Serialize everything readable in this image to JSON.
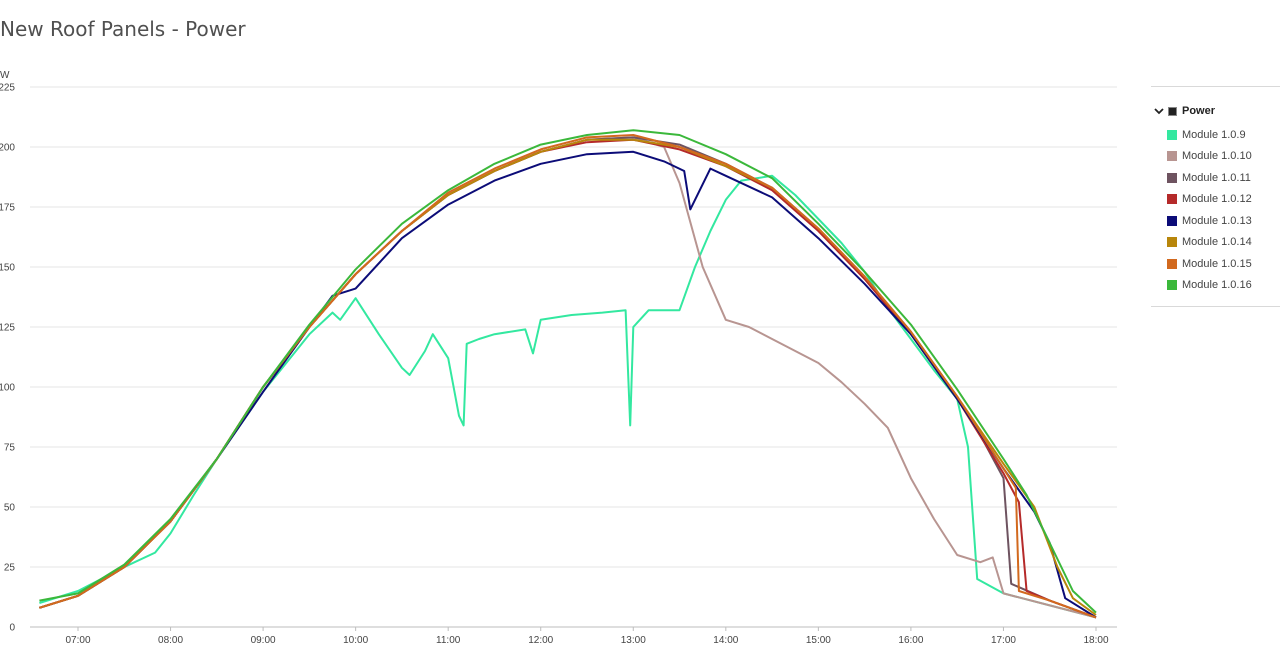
{
  "page": {
    "title": "New Roof Panels - Power"
  },
  "legend": {
    "group_label": "Power",
    "collapse_icon": "chevron-down-icon"
  },
  "chart_data": {
    "type": "line",
    "title": "New Roof Panels - Power",
    "ylabel": "W",
    "xlabel": "",
    "ylim": [
      0,
      225
    ],
    "xlim": [
      "06:35",
      "18:05"
    ],
    "y_ticks": [
      "0",
      "25",
      "50",
      "75",
      "100",
      "125",
      "150",
      "175",
      "200",
      "225"
    ],
    "x_ticks": [
      "07:00",
      "08:00",
      "09:00",
      "10:00",
      "11:00",
      "12:00",
      "13:00",
      "14:00",
      "15:00",
      "16:00",
      "17:00",
      "18:00"
    ],
    "grid": true,
    "legend_position": "right",
    "series": [
      {
        "name": "Module 1.0.9",
        "color": "#33e8a0",
        "points": [
          [
            "06:35",
            10
          ],
          [
            "07:00",
            15
          ],
          [
            "07:30",
            25
          ],
          [
            "07:50",
            31
          ],
          [
            "08:00",
            39
          ],
          [
            "08:15",
            55
          ],
          [
            "08:30",
            70
          ],
          [
            "09:00",
            98
          ],
          [
            "09:30",
            122
          ],
          [
            "09:45",
            131
          ],
          [
            "09:50",
            128
          ],
          [
            "10:00",
            137
          ],
          [
            "10:15",
            122
          ],
          [
            "10:30",
            108
          ],
          [
            "10:35",
            105
          ],
          [
            "10:45",
            115
          ],
          [
            "10:50",
            122
          ],
          [
            "11:00",
            112
          ],
          [
            "11:07",
            88
          ],
          [
            "11:10",
            84
          ],
          [
            "11:12",
            118
          ],
          [
            "11:20",
            120
          ],
          [
            "11:30",
            122
          ],
          [
            "11:50",
            124
          ],
          [
            "11:55",
            114
          ],
          [
            "12:00",
            128
          ],
          [
            "12:20",
            130
          ],
          [
            "12:40",
            131
          ],
          [
            "12:55",
            132
          ],
          [
            "12:58",
            84
          ],
          [
            "13:00",
            125
          ],
          [
            "13:10",
            132
          ],
          [
            "13:30",
            132
          ],
          [
            "13:40",
            150
          ],
          [
            "13:50",
            165
          ],
          [
            "14:00",
            178
          ],
          [
            "14:10",
            186
          ],
          [
            "14:30",
            188
          ],
          [
            "14:45",
            180
          ],
          [
            "15:00",
            170
          ],
          [
            "15:15",
            160
          ],
          [
            "15:30",
            148
          ],
          [
            "15:45",
            133
          ],
          [
            "16:00",
            120
          ],
          [
            "16:15",
            107
          ],
          [
            "16:30",
            95
          ],
          [
            "16:37",
            75
          ],
          [
            "16:43",
            20
          ],
          [
            "17:00",
            14
          ],
          [
            "17:30",
            9
          ],
          [
            "18:00",
            4
          ]
        ]
      },
      {
        "name": "Module 1.0.10",
        "color": "#b89591",
        "points": [
          [
            "06:35",
            8
          ],
          [
            "07:00",
            13
          ],
          [
            "07:30",
            25
          ],
          [
            "08:00",
            44
          ],
          [
            "08:30",
            70
          ],
          [
            "09:00",
            100
          ],
          [
            "09:30",
            125
          ],
          [
            "10:00",
            147
          ],
          [
            "10:30",
            165
          ],
          [
            "11:00",
            180
          ],
          [
            "11:30",
            190
          ],
          [
            "12:00",
            198
          ],
          [
            "12:30",
            203
          ],
          [
            "13:00",
            204
          ],
          [
            "13:20",
            200
          ],
          [
            "13:30",
            185
          ],
          [
            "13:45",
            150
          ],
          [
            "14:00",
            128
          ],
          [
            "14:15",
            125
          ],
          [
            "14:30",
            120
          ],
          [
            "15:00",
            110
          ],
          [
            "15:15",
            102
          ],
          [
            "15:30",
            93
          ],
          [
            "15:45",
            83
          ],
          [
            "16:00",
            62
          ],
          [
            "16:15",
            45
          ],
          [
            "16:30",
            30
          ],
          [
            "16:45",
            27
          ],
          [
            "16:53",
            29
          ],
          [
            "17:00",
            14
          ],
          [
            "17:30",
            9
          ],
          [
            "18:00",
            4
          ]
        ]
      },
      {
        "name": "Module 1.0.11",
        "color": "#6e5360",
        "points": [
          [
            "06:35",
            8
          ],
          [
            "07:00",
            13
          ],
          [
            "07:30",
            25
          ],
          [
            "08:00",
            44
          ],
          [
            "08:30",
            70
          ],
          [
            "09:00",
            100
          ],
          [
            "09:30",
            125
          ],
          [
            "10:00",
            147
          ],
          [
            "10:30",
            165
          ],
          [
            "11:00",
            180
          ],
          [
            "11:30",
            190
          ],
          [
            "12:00",
            198
          ],
          [
            "12:30",
            203
          ],
          [
            "13:00",
            204
          ],
          [
            "13:30",
            201
          ],
          [
            "14:00",
            193
          ],
          [
            "14:30",
            183
          ],
          [
            "15:00",
            166
          ],
          [
            "15:30",
            146
          ],
          [
            "16:00",
            123
          ],
          [
            "16:30",
            96
          ],
          [
            "16:45",
            80
          ],
          [
            "17:00",
            62
          ],
          [
            "17:05",
            18
          ],
          [
            "17:30",
            11
          ],
          [
            "18:00",
            4
          ]
        ]
      },
      {
        "name": "Module 1.0.12",
        "color": "#b52a2a",
        "points": [
          [
            "06:35",
            8
          ],
          [
            "07:00",
            13
          ],
          [
            "07:30",
            25
          ],
          [
            "08:00",
            44
          ],
          [
            "08:30",
            70
          ],
          [
            "09:00",
            100
          ],
          [
            "09:30",
            125
          ],
          [
            "10:00",
            147
          ],
          [
            "10:30",
            165
          ],
          [
            "11:00",
            180
          ],
          [
            "11:30",
            190
          ],
          [
            "12:00",
            198
          ],
          [
            "12:30",
            202
          ],
          [
            "13:00",
            203
          ],
          [
            "13:30",
            199
          ],
          [
            "14:00",
            192
          ],
          [
            "14:30",
            182
          ],
          [
            "15:00",
            165
          ],
          [
            "15:30",
            145
          ],
          [
            "16:00",
            122
          ],
          [
            "16:30",
            95
          ],
          [
            "17:00",
            64
          ],
          [
            "17:10",
            52
          ],
          [
            "17:15",
            15
          ],
          [
            "17:30",
            11
          ],
          [
            "18:00",
            4
          ]
        ]
      },
      {
        "name": "Module 1.0.13",
        "color": "#0c0c78",
        "points": [
          [
            "06:35",
            8
          ],
          [
            "07:00",
            13
          ],
          [
            "07:30",
            25
          ],
          [
            "08:00",
            44
          ],
          [
            "08:30",
            70
          ],
          [
            "09:00",
            98
          ],
          [
            "09:30",
            125
          ],
          [
            "09:45",
            138
          ],
          [
            "10:00",
            141
          ],
          [
            "10:30",
            162
          ],
          [
            "11:00",
            176
          ],
          [
            "11:30",
            186
          ],
          [
            "12:00",
            193
          ],
          [
            "12:30",
            197
          ],
          [
            "13:00",
            198
          ],
          [
            "13:20",
            194
          ],
          [
            "13:33",
            190
          ],
          [
            "13:37",
            174
          ],
          [
            "13:50",
            191
          ],
          [
            "14:00",
            188
          ],
          [
            "14:30",
            179
          ],
          [
            "15:00",
            162
          ],
          [
            "15:30",
            143
          ],
          [
            "16:00",
            122
          ],
          [
            "16:30",
            95
          ],
          [
            "17:00",
            66
          ],
          [
            "17:20",
            48
          ],
          [
            "17:30",
            35
          ],
          [
            "17:40",
            12
          ],
          [
            "18:00",
            4
          ]
        ]
      },
      {
        "name": "Module 1.0.14",
        "color": "#b8860b",
        "points": [
          [
            "06:35",
            8
          ],
          [
            "07:00",
            13
          ],
          [
            "07:30",
            25
          ],
          [
            "08:00",
            44
          ],
          [
            "08:30",
            70
          ],
          [
            "09:00",
            100
          ],
          [
            "09:30",
            125
          ],
          [
            "10:00",
            147
          ],
          [
            "10:30",
            165
          ],
          [
            "11:00",
            180
          ],
          [
            "11:30",
            190
          ],
          [
            "12:00",
            198
          ],
          [
            "12:30",
            203
          ],
          [
            "13:00",
            203
          ],
          [
            "13:30",
            200
          ],
          [
            "14:00",
            192
          ],
          [
            "14:30",
            183
          ],
          [
            "15:00",
            166
          ],
          [
            "15:30",
            146
          ],
          [
            "16:00",
            123
          ],
          [
            "16:30",
            96
          ],
          [
            "17:00",
            68
          ],
          [
            "17:20",
            50
          ],
          [
            "17:35",
            25
          ],
          [
            "17:45",
            12
          ],
          [
            "18:00",
            5
          ]
        ]
      },
      {
        "name": "Module 1.0.15",
        "color": "#d2691e",
        "points": [
          [
            "06:35",
            8
          ],
          [
            "07:00",
            13
          ],
          [
            "07:30",
            25
          ],
          [
            "08:00",
            44
          ],
          [
            "08:30",
            70
          ],
          [
            "09:00",
            100
          ],
          [
            "09:30",
            125
          ],
          [
            "10:00",
            147
          ],
          [
            "10:30",
            165
          ],
          [
            "11:00",
            181
          ],
          [
            "11:30",
            191
          ],
          [
            "12:00",
            199
          ],
          [
            "12:30",
            204
          ],
          [
            "13:00",
            205
          ],
          [
            "13:30",
            200
          ],
          [
            "14:00",
            193
          ],
          [
            "14:30",
            183
          ],
          [
            "15:00",
            166
          ],
          [
            "15:30",
            146
          ],
          [
            "16:00",
            123
          ],
          [
            "16:30",
            96
          ],
          [
            "17:00",
            66
          ],
          [
            "17:08",
            58
          ],
          [
            "17:10",
            15
          ],
          [
            "17:30",
            11
          ],
          [
            "18:00",
            4
          ]
        ]
      },
      {
        "name": "Module 1.0.16",
        "color": "#3bb83b",
        "points": [
          [
            "06:35",
            11
          ],
          [
            "07:00",
            14
          ],
          [
            "07:30",
            26
          ],
          [
            "08:00",
            45
          ],
          [
            "08:30",
            70
          ],
          [
            "09:00",
            100
          ],
          [
            "09:30",
            126
          ],
          [
            "10:00",
            149
          ],
          [
            "10:30",
            168
          ],
          [
            "11:00",
            182
          ],
          [
            "11:30",
            193
          ],
          [
            "12:00",
            201
          ],
          [
            "12:30",
            205
          ],
          [
            "13:00",
            207
          ],
          [
            "13:30",
            205
          ],
          [
            "14:00",
            197
          ],
          [
            "14:30",
            187
          ],
          [
            "15:00",
            168
          ],
          [
            "15:30",
            148
          ],
          [
            "16:00",
            126
          ],
          [
            "16:30",
            99
          ],
          [
            "17:00",
            70
          ],
          [
            "17:15",
            55
          ],
          [
            "17:30",
            35
          ],
          [
            "17:45",
            15
          ],
          [
            "18:00",
            6
          ]
        ]
      }
    ]
  }
}
